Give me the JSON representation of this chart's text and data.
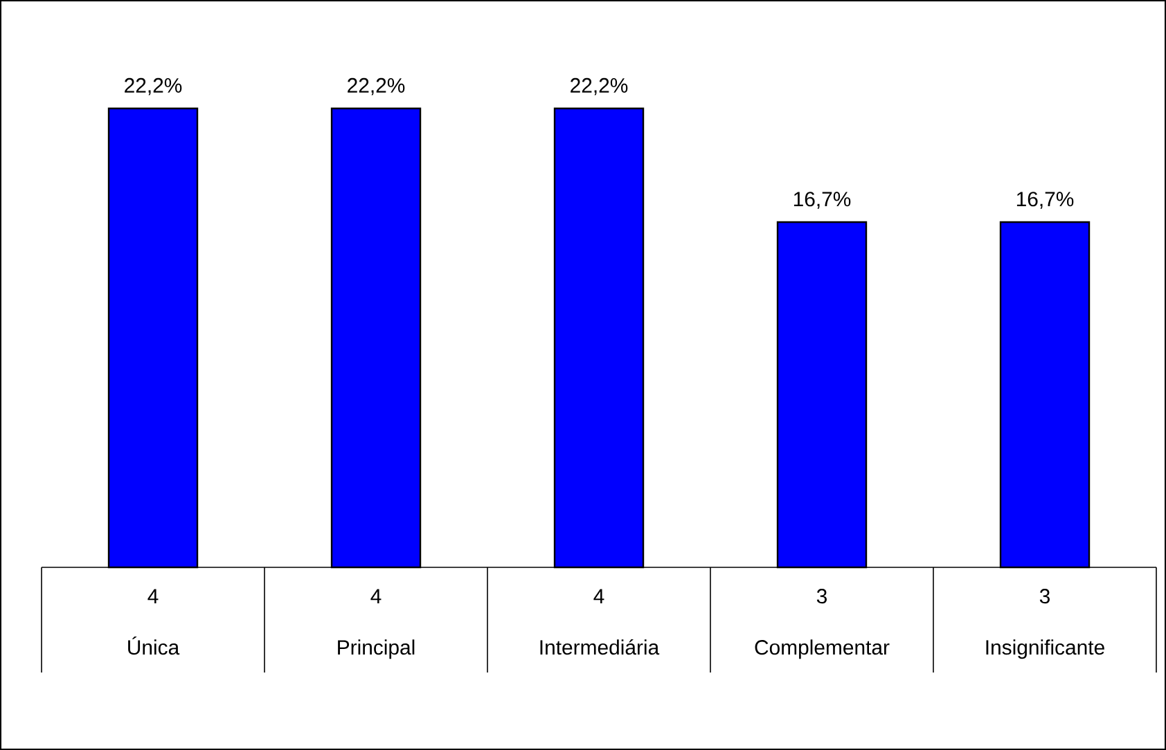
{
  "chart_data": {
    "type": "bar",
    "categories": [
      "Única",
      "Principal",
      "Intermediária",
      "Complementar",
      "Insignificante"
    ],
    "values": [
      22.2,
      22.2,
      22.2,
      16.7,
      16.7
    ],
    "value_labels": [
      "22,2%",
      "22,2%",
      "22,2%",
      "16,7%",
      "16,7%"
    ],
    "color": "#0000ff",
    "annotations": [
      "4",
      "4",
      "4",
      "3",
      "3"
    ]
  }
}
